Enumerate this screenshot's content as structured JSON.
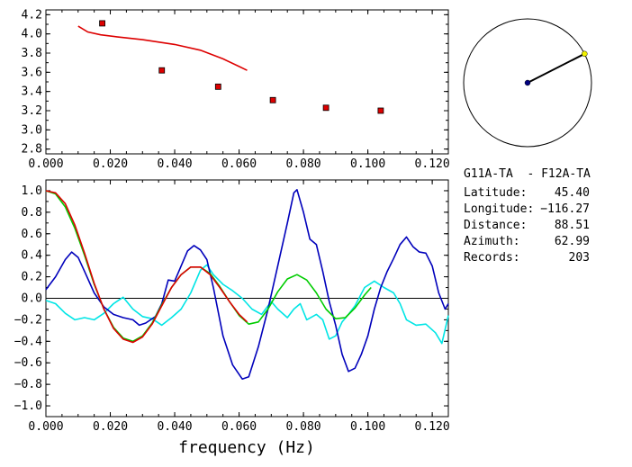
{
  "colors": {
    "red": "#dd0000",
    "green": "#00cc00",
    "blue": "#0000bb",
    "cyan": "#00e5e5",
    "marker_fill": "#dd0000",
    "station_marker": "#f2f200",
    "center_marker": "#000080"
  },
  "chart_data": [
    {
      "type": "scatter",
      "name": "dispersion",
      "xlim": [
        0.0,
        0.125
      ],
      "ylim": [
        2.75,
        4.25
      ],
      "xticks": [
        "0.000",
        "0.020",
        "0.040",
        "0.060",
        "0.080",
        "0.100",
        "0.120"
      ],
      "yticks": [
        "2.8",
        "3.0",
        "3.2",
        "3.4",
        "3.6",
        "3.8",
        "4.0",
        "4.2"
      ],
      "points": [
        {
          "x": 0.0175,
          "y": 4.11
        },
        {
          "x": 0.036,
          "y": 3.62
        },
        {
          "x": 0.0535,
          "y": 3.45
        },
        {
          "x": 0.0705,
          "y": 3.31
        },
        {
          "x": 0.087,
          "y": 3.23
        },
        {
          "x": 0.104,
          "y": 3.2
        }
      ],
      "curve": [
        {
          "x": 0.01,
          "y": 4.08
        },
        {
          "x": 0.013,
          "y": 4.02
        },
        {
          "x": 0.017,
          "y": 3.99
        },
        {
          "x": 0.022,
          "y": 3.97
        },
        {
          "x": 0.03,
          "y": 3.94
        },
        {
          "x": 0.04,
          "y": 3.89
        },
        {
          "x": 0.048,
          "y": 3.83
        },
        {
          "x": 0.055,
          "y": 3.74
        },
        {
          "x": 0.06,
          "y": 3.66
        },
        {
          "x": 0.0625,
          "y": 3.62
        }
      ]
    },
    {
      "type": "line",
      "name": "correlation",
      "xlim": [
        0.0,
        0.125
      ],
      "ylim": [
        -1.1,
        1.1
      ],
      "xticks": [
        "0.000",
        "0.020",
        "0.040",
        "0.060",
        "0.080",
        "0.100",
        "0.120"
      ],
      "yticks": [
        "1.0",
        "0.8",
        "0.6",
        "0.4",
        "0.2",
        "0.0",
        "−0.2",
        "−0.4",
        "−0.6",
        "−0.8",
        "−1.0"
      ],
      "xlabel": "frequency (Hz)",
      "series": [
        {
          "color": "cyan",
          "points": [
            {
              "x": 0.0,
              "y": -0.02
            },
            {
              "x": 0.003,
              "y": -0.05
            },
            {
              "x": 0.006,
              "y": -0.14
            },
            {
              "x": 0.009,
              "y": -0.2
            },
            {
              "x": 0.012,
              "y": -0.18
            },
            {
              "x": 0.015,
              "y": -0.2
            },
            {
              "x": 0.018,
              "y": -0.14
            },
            {
              "x": 0.021,
              "y": -0.05
            },
            {
              "x": 0.024,
              "y": 0.01
            },
            {
              "x": 0.027,
              "y": -0.1
            },
            {
              "x": 0.03,
              "y": -0.17
            },
            {
              "x": 0.033,
              "y": -0.19
            },
            {
              "x": 0.036,
              "y": -0.25
            },
            {
              "x": 0.039,
              "y": -0.18
            },
            {
              "x": 0.042,
              "y": -0.1
            },
            {
              "x": 0.045,
              "y": 0.05
            },
            {
              "x": 0.048,
              "y": 0.26
            },
            {
              "x": 0.05,
              "y": 0.31
            },
            {
              "x": 0.052,
              "y": 0.22
            },
            {
              "x": 0.055,
              "y": 0.13
            },
            {
              "x": 0.058,
              "y": 0.07
            },
            {
              "x": 0.061,
              "y": 0.0
            },
            {
              "x": 0.064,
              "y": -0.1
            },
            {
              "x": 0.067,
              "y": -0.15
            },
            {
              "x": 0.07,
              "y": -0.03
            },
            {
              "x": 0.072,
              "y": -0.1
            },
            {
              "x": 0.075,
              "y": -0.18
            },
            {
              "x": 0.077,
              "y": -0.1
            },
            {
              "x": 0.079,
              "y": -0.05
            },
            {
              "x": 0.081,
              "y": -0.2
            },
            {
              "x": 0.084,
              "y": -0.15
            },
            {
              "x": 0.086,
              "y": -0.2
            },
            {
              "x": 0.088,
              "y": -0.38
            },
            {
              "x": 0.09,
              "y": -0.35
            },
            {
              "x": 0.092,
              "y": -0.22
            },
            {
              "x": 0.094,
              "y": -0.15
            },
            {
              "x": 0.096,
              "y": -0.07
            },
            {
              "x": 0.099,
              "y": 0.1
            },
            {
              "x": 0.102,
              "y": 0.16
            },
            {
              "x": 0.105,
              "y": 0.1
            },
            {
              "x": 0.108,
              "y": 0.05
            },
            {
              "x": 0.11,
              "y": -0.05
            },
            {
              "x": 0.112,
              "y": -0.2
            },
            {
              "x": 0.115,
              "y": -0.25
            },
            {
              "x": 0.118,
              "y": -0.24
            },
            {
              "x": 0.121,
              "y": -0.32
            },
            {
              "x": 0.123,
              "y": -0.42
            },
            {
              "x": 0.125,
              "y": -0.16
            }
          ]
        },
        {
          "color": "blue",
          "points": [
            {
              "x": 0.0,
              "y": 0.08
            },
            {
              "x": 0.003,
              "y": 0.2
            },
            {
              "x": 0.006,
              "y": 0.36
            },
            {
              "x": 0.008,
              "y": 0.43
            },
            {
              "x": 0.01,
              "y": 0.38
            },
            {
              "x": 0.012,
              "y": 0.25
            },
            {
              "x": 0.015,
              "y": 0.05
            },
            {
              "x": 0.018,
              "y": -0.08
            },
            {
              "x": 0.021,
              "y": -0.15
            },
            {
              "x": 0.024,
              "y": -0.18
            },
            {
              "x": 0.027,
              "y": -0.2
            },
            {
              "x": 0.029,
              "y": -0.25
            },
            {
              "x": 0.031,
              "y": -0.23
            },
            {
              "x": 0.034,
              "y": -0.17
            },
            {
              "x": 0.036,
              "y": -0.05
            },
            {
              "x": 0.038,
              "y": 0.17
            },
            {
              "x": 0.04,
              "y": 0.16
            },
            {
              "x": 0.042,
              "y": 0.3
            },
            {
              "x": 0.044,
              "y": 0.44
            },
            {
              "x": 0.046,
              "y": 0.49
            },
            {
              "x": 0.048,
              "y": 0.45
            },
            {
              "x": 0.05,
              "y": 0.36
            },
            {
              "x": 0.052,
              "y": 0.1
            },
            {
              "x": 0.055,
              "y": -0.35
            },
            {
              "x": 0.058,
              "y": -0.62
            },
            {
              "x": 0.061,
              "y": -0.75
            },
            {
              "x": 0.063,
              "y": -0.73
            },
            {
              "x": 0.066,
              "y": -0.45
            },
            {
              "x": 0.069,
              "y": -0.1
            },
            {
              "x": 0.072,
              "y": 0.3
            },
            {
              "x": 0.075,
              "y": 0.7
            },
            {
              "x": 0.077,
              "y": 0.98
            },
            {
              "x": 0.078,
              "y": 1.01
            },
            {
              "x": 0.08,
              "y": 0.8
            },
            {
              "x": 0.082,
              "y": 0.55
            },
            {
              "x": 0.084,
              "y": 0.5
            },
            {
              "x": 0.086,
              "y": 0.25
            },
            {
              "x": 0.088,
              "y": -0.03
            },
            {
              "x": 0.09,
              "y": -0.25
            },
            {
              "x": 0.092,
              "y": -0.52
            },
            {
              "x": 0.094,
              "y": -0.68
            },
            {
              "x": 0.096,
              "y": -0.65
            },
            {
              "x": 0.098,
              "y": -0.52
            },
            {
              "x": 0.1,
              "y": -0.35
            },
            {
              "x": 0.102,
              "y": -0.1
            },
            {
              "x": 0.104,
              "y": 0.1
            },
            {
              "x": 0.106,
              "y": 0.25
            },
            {
              "x": 0.108,
              "y": 0.37
            },
            {
              "x": 0.11,
              "y": 0.5
            },
            {
              "x": 0.112,
              "y": 0.57
            },
            {
              "x": 0.114,
              "y": 0.48
            },
            {
              "x": 0.116,
              "y": 0.43
            },
            {
              "x": 0.118,
              "y": 0.42
            },
            {
              "x": 0.12,
              "y": 0.3
            },
            {
              "x": 0.122,
              "y": 0.05
            },
            {
              "x": 0.124,
              "y": -0.1
            },
            {
              "x": 0.125,
              "y": -0.05
            }
          ]
        },
        {
          "color": "green",
          "points": [
            {
              "x": 0.0,
              "y": 1.0
            },
            {
              "x": 0.003,
              "y": 0.97
            },
            {
              "x": 0.006,
              "y": 0.85
            },
            {
              "x": 0.009,
              "y": 0.65
            },
            {
              "x": 0.012,
              "y": 0.4
            },
            {
              "x": 0.015,
              "y": 0.13
            },
            {
              "x": 0.018,
              "y": -0.1
            },
            {
              "x": 0.021,
              "y": -0.27
            },
            {
              "x": 0.024,
              "y": -0.37
            },
            {
              "x": 0.027,
              "y": -0.4
            },
            {
              "x": 0.03,
              "y": -0.35
            },
            {
              "x": 0.033,
              "y": -0.23
            },
            {
              "x": 0.036,
              "y": -0.06
            },
            {
              "x": 0.039,
              "y": 0.1
            },
            {
              "x": 0.042,
              "y": 0.22
            },
            {
              "x": 0.045,
              "y": 0.29
            },
            {
              "x": 0.048,
              "y": 0.29
            },
            {
              "x": 0.051,
              "y": 0.23
            },
            {
              "x": 0.054,
              "y": 0.11
            },
            {
              "x": 0.057,
              "y": -0.03
            },
            {
              "x": 0.06,
              "y": -0.16
            },
            {
              "x": 0.063,
              "y": -0.24
            },
            {
              "x": 0.066,
              "y": -0.22
            },
            {
              "x": 0.069,
              "y": -0.1
            },
            {
              "x": 0.072,
              "y": 0.06
            },
            {
              "x": 0.075,
              "y": 0.18
            },
            {
              "x": 0.078,
              "y": 0.22
            },
            {
              "x": 0.081,
              "y": 0.17
            },
            {
              "x": 0.084,
              "y": 0.05
            },
            {
              "x": 0.087,
              "y": -0.1
            },
            {
              "x": 0.09,
              "y": -0.19
            },
            {
              "x": 0.093,
              "y": -0.18
            },
            {
              "x": 0.096,
              "y": -0.09
            },
            {
              "x": 0.099,
              "y": 0.03
            },
            {
              "x": 0.101,
              "y": 0.1
            }
          ]
        },
        {
          "color": "red",
          "points": [
            {
              "x": 0.0,
              "y": 1.0
            },
            {
              "x": 0.003,
              "y": 0.98
            },
            {
              "x": 0.006,
              "y": 0.88
            },
            {
              "x": 0.009,
              "y": 0.68
            },
            {
              "x": 0.012,
              "y": 0.42
            },
            {
              "x": 0.015,
              "y": 0.14
            },
            {
              "x": 0.018,
              "y": -0.1
            },
            {
              "x": 0.021,
              "y": -0.28
            },
            {
              "x": 0.024,
              "y": -0.38
            },
            {
              "x": 0.027,
              "y": -0.41
            },
            {
              "x": 0.03,
              "y": -0.36
            },
            {
              "x": 0.033,
              "y": -0.24
            },
            {
              "x": 0.036,
              "y": -0.07
            },
            {
              "x": 0.039,
              "y": 0.1
            },
            {
              "x": 0.042,
              "y": 0.22
            },
            {
              "x": 0.045,
              "y": 0.29
            },
            {
              "x": 0.048,
              "y": 0.29
            },
            {
              "x": 0.051,
              "y": 0.22
            },
            {
              "x": 0.054,
              "y": 0.1
            },
            {
              "x": 0.057,
              "y": -0.03
            },
            {
              "x": 0.06,
              "y": -0.15
            },
            {
              "x": 0.0625,
              "y": -0.22
            }
          ]
        }
      ]
    }
  ],
  "map": {
    "azimuth": 62.99
  },
  "info": {
    "pair": "G11A-TA  - F12A-TA",
    "rows": [
      {
        "label": "Latitude:",
        "value": "45.40"
      },
      {
        "label": "Longitude:",
        "value": "−116.27"
      },
      {
        "label": "Distance:",
        "value": "88.51"
      },
      {
        "label": "Azimuth:",
        "value": "62.99"
      },
      {
        "label": "Records:",
        "value": "203"
      }
    ]
  }
}
